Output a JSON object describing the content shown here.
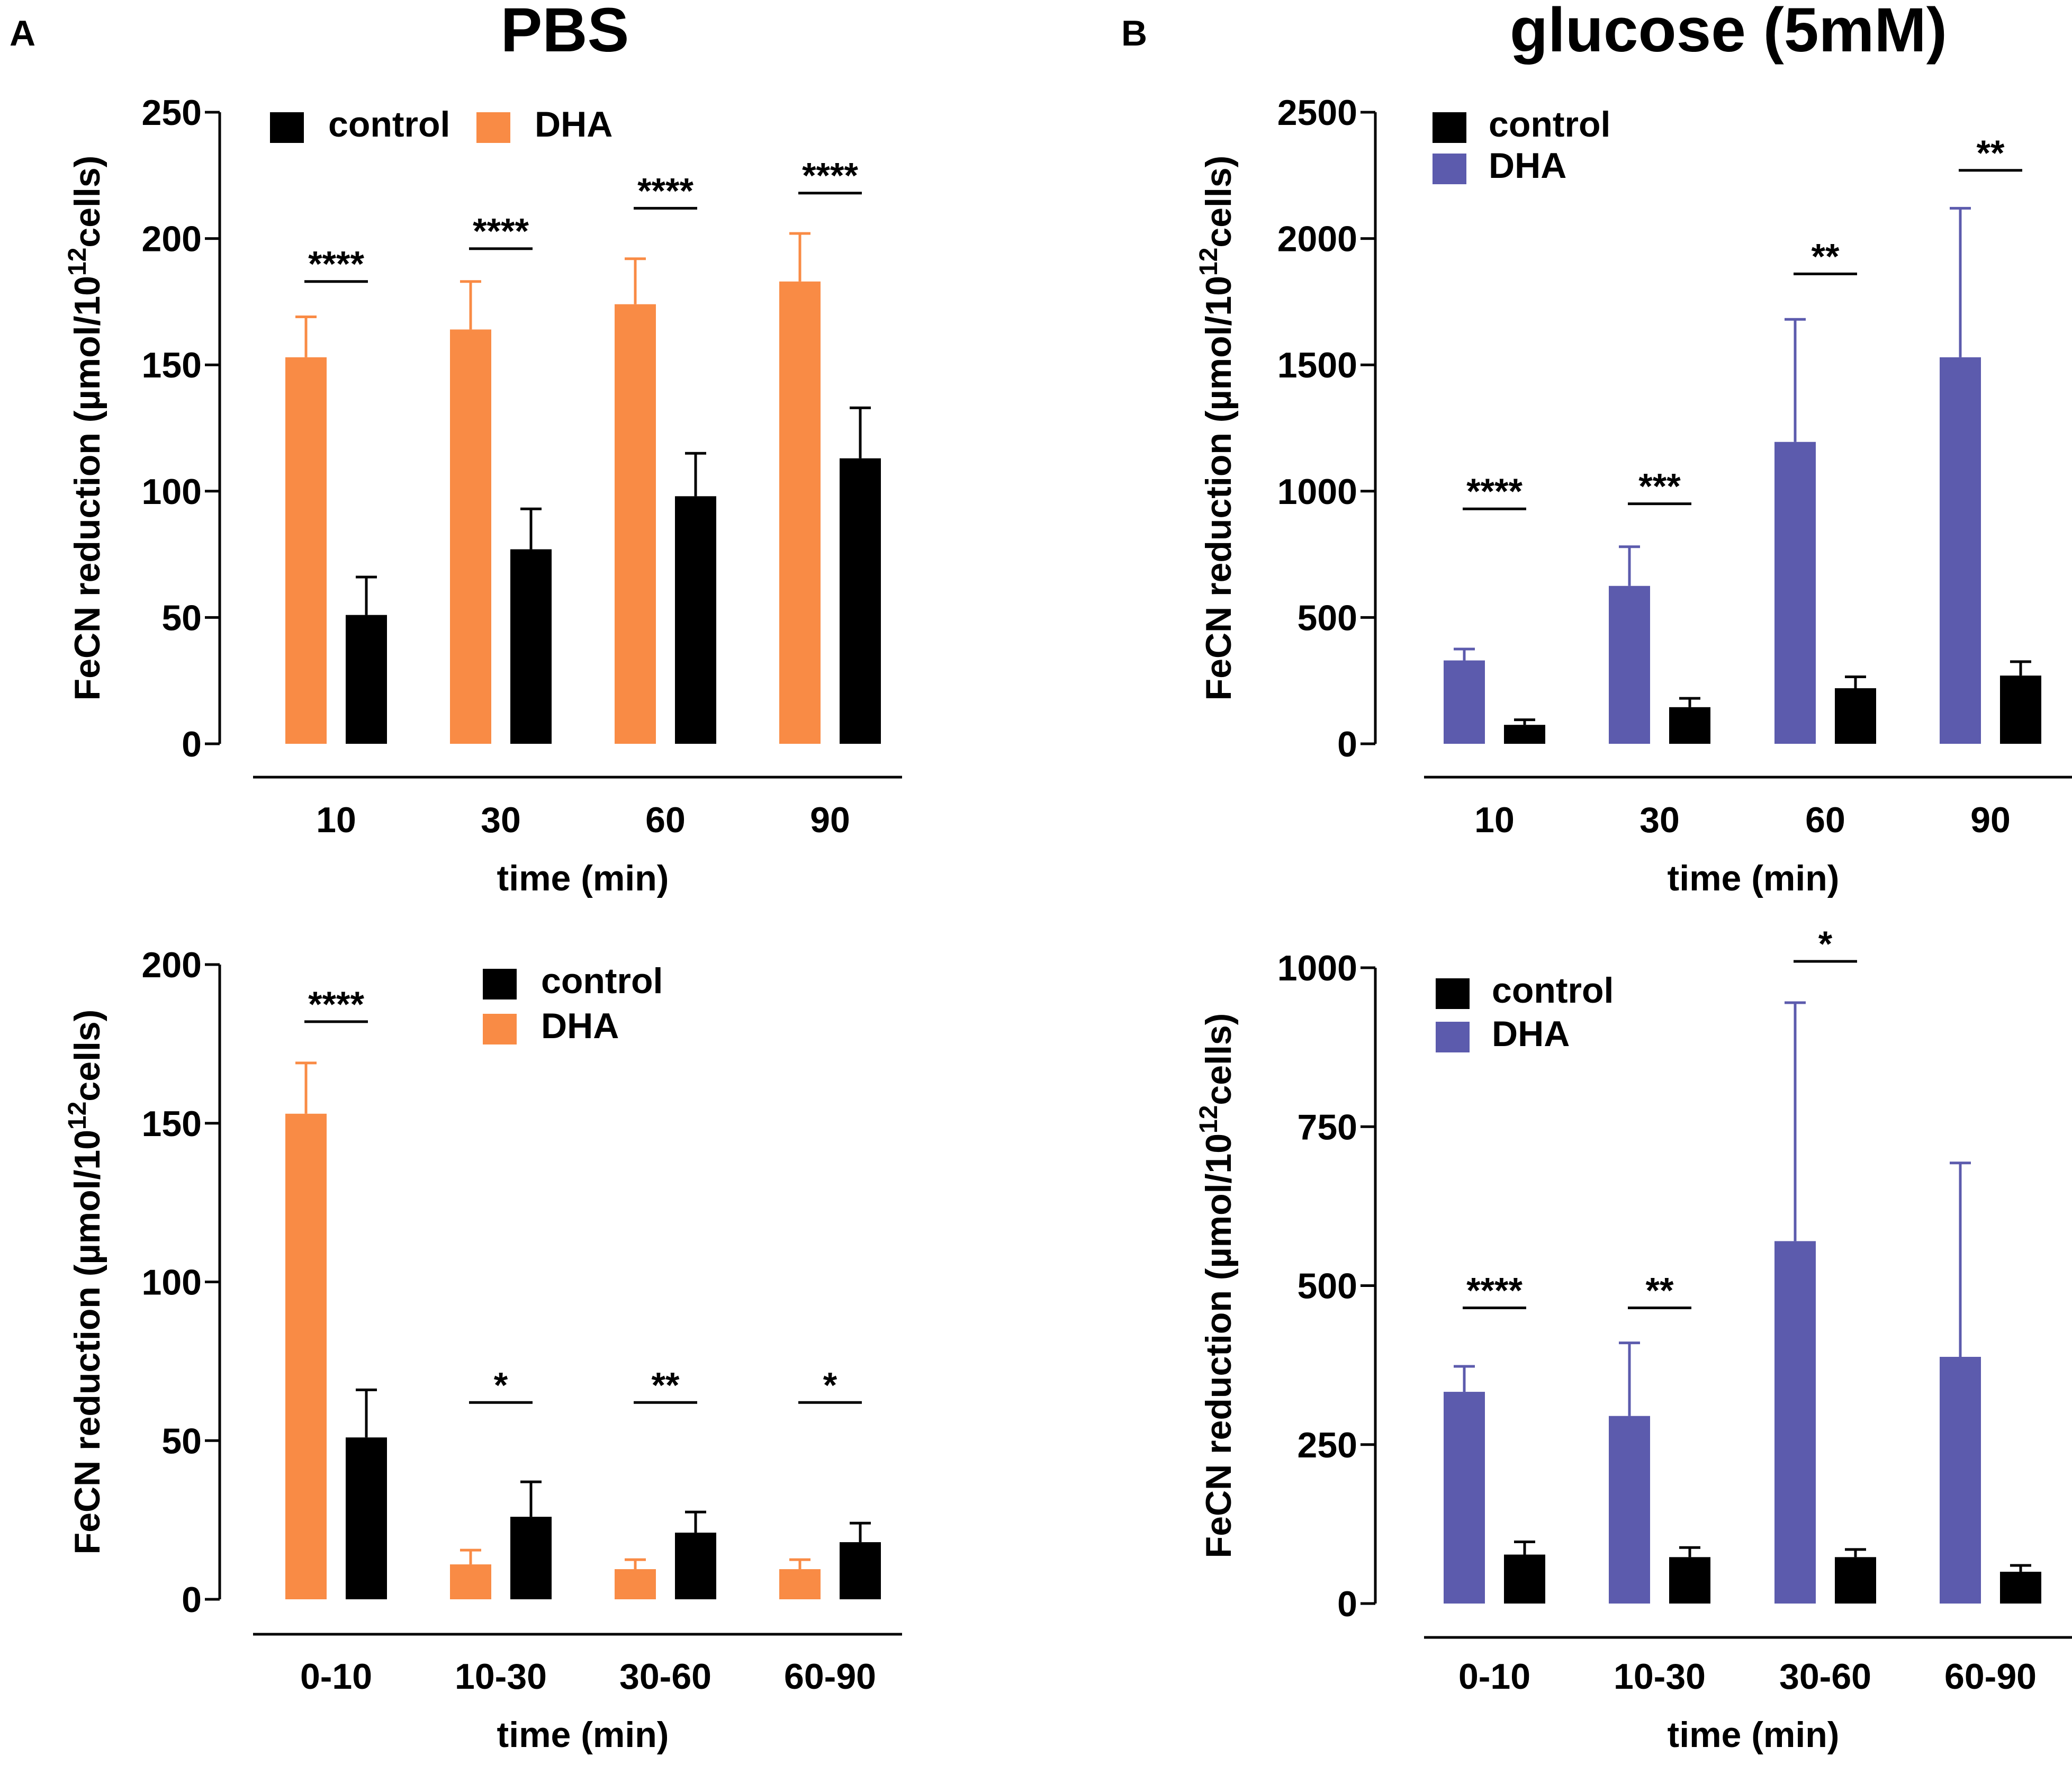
{
  "panels": {
    "A": {
      "letter": "A",
      "title": "PBS"
    },
    "B": {
      "letter": "B",
      "title": "glucose (5mM)"
    }
  },
  "colors": {
    "control": "#000000",
    "dha_pbs": "#F98B45",
    "dha_glucose": "#5C5BAD"
  },
  "chart_data": [
    {
      "id": "pbs_cumulative",
      "type": "bar",
      "panel": "A",
      "title": "PBS",
      "categories": [
        "10",
        "30",
        "60",
        "90"
      ],
      "series": [
        {
          "name": "DHA",
          "color": "#F98B45",
          "values": [
            153,
            164,
            174,
            183
          ],
          "errors": [
            16,
            19,
            18,
            19
          ]
        },
        {
          "name": "control",
          "color": "#000000",
          "values": [
            51,
            77,
            98,
            113
          ],
          "errors": [
            15,
            16,
            17,
            20
          ]
        }
      ],
      "legend": [
        {
          "name": "control",
          "color": "#000000"
        },
        {
          "name": "DHA",
          "color": "#F98B45"
        }
      ],
      "legend_position": "top-left",
      "significance": [
        "****",
        "****",
        "****",
        "****"
      ],
      "sig_y": [
        183,
        196,
        212,
        218
      ],
      "xlabel": "time (min)",
      "ylabel_prefix": "FeCN reduction (µmol/10",
      "ylabel_sup": "12",
      "ylabel_suffix": "cells)",
      "ylim": [
        0,
        250
      ],
      "yticks": [
        0,
        50,
        100,
        150,
        200,
        250
      ]
    },
    {
      "id": "glucose_cumulative",
      "type": "bar",
      "panel": "B",
      "title": "glucose (5mM)",
      "categories": [
        "10",
        "30",
        "60",
        "90"
      ],
      "series": [
        {
          "name": "DHA",
          "color": "#5C5BAD",
          "values": [
            330,
            625,
            1195,
            1530
          ],
          "errors": [
            45,
            155,
            485,
            590
          ]
        },
        {
          "name": "control",
          "color": "#000000",
          "values": [
            75,
            145,
            220,
            270
          ],
          "errors": [
            20,
            35,
            45,
            55
          ]
        }
      ],
      "legend": [
        {
          "name": "control",
          "color": "#000000"
        },
        {
          "name": "DHA",
          "color": "#5C5BAD"
        }
      ],
      "legend_position": "top-left",
      "significance": [
        "****",
        "***",
        "**",
        "**"
      ],
      "sig_y": [
        930,
        950,
        1860,
        2270
      ],
      "xlabel": "time (min)",
      "ylabel_prefix": "FeCN reduction (µmol/10",
      "ylabel_sup": "12",
      "ylabel_suffix": "cells)",
      "ylim": [
        0,
        2500
      ],
      "yticks": [
        0,
        500,
        1000,
        1500,
        2000,
        2500
      ]
    },
    {
      "id": "pbs_interval",
      "type": "bar",
      "panel": "A",
      "title": "",
      "categories": [
        "0-10",
        "10-30",
        "30-60",
        "60-90"
      ],
      "series": [
        {
          "name": "DHA",
          "color": "#F98B45",
          "values": [
            153,
            11,
            9.5,
            9.5
          ],
          "errors": [
            16,
            4.5,
            3,
            3
          ]
        },
        {
          "name": "control",
          "color": "#000000",
          "values": [
            51,
            26,
            21,
            18
          ],
          "errors": [
            15,
            11,
            6.5,
            6
          ]
        }
      ],
      "legend": [
        {
          "name": "control",
          "color": "#000000"
        },
        {
          "name": "DHA",
          "color": "#F98B45"
        }
      ],
      "legend_position": "top-right",
      "significance": [
        "****",
        "*",
        "**",
        "*"
      ],
      "sig_y": [
        182,
        62,
        62,
        62
      ],
      "xlabel": "time (min)",
      "ylabel_prefix": "FeCN reduction (µmol/10",
      "ylabel_sup": "12",
      "ylabel_suffix": "cells)",
      "ylim": [
        0,
        200
      ],
      "yticks": [
        0,
        50,
        100,
        150,
        200
      ]
    },
    {
      "id": "glucose_interval",
      "type": "bar",
      "panel": "B",
      "title": "",
      "categories": [
        "0-10",
        "10-30",
        "30-60",
        "60-90"
      ],
      "series": [
        {
          "name": "DHA",
          "color": "#5C5BAD",
          "values": [
            333,
            295,
            570,
            388
          ],
          "errors": [
            40,
            115,
            375,
            305
          ]
        },
        {
          "name": "control",
          "color": "#000000",
          "values": [
            77,
            73,
            73,
            50
          ],
          "errors": [
            20,
            15,
            12,
            10
          ]
        }
      ],
      "legend": [
        {
          "name": "control",
          "color": "#000000"
        },
        {
          "name": "DHA",
          "color": "#5C5BAD"
        }
      ],
      "legend_position": "top-left",
      "significance": [
        "****",
        "**",
        "*",
        ""
      ],
      "sig_y": [
        465,
        465,
        1010,
        0
      ],
      "xlabel": "time (min)",
      "ylabel_prefix": "FeCN reduction (µmol/10",
      "ylabel_sup": "12",
      "ylabel_suffix": "cells)",
      "ylim": [
        0,
        1000
      ],
      "yticks": [
        0,
        250,
        500,
        750,
        1000
      ]
    }
  ]
}
